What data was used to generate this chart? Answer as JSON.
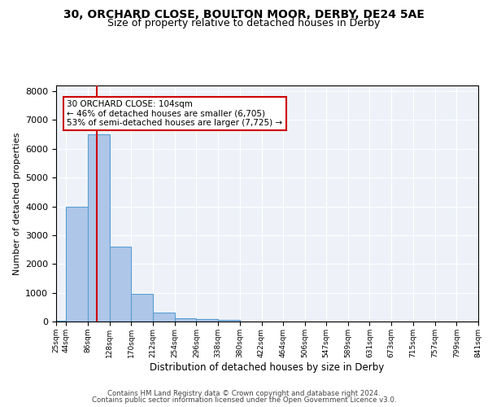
{
  "title1": "30, ORCHARD CLOSE, BOULTON MOOR, DERBY, DE24 5AE",
  "title2": "Size of property relative to detached houses in Derby",
  "xlabel": "Distribution of detached houses by size in Derby",
  "ylabel": "Number of detached properties",
  "bin_edges": [
    25,
    44,
    86,
    128,
    170,
    212,
    254,
    296,
    338,
    380,
    422,
    464,
    506,
    547,
    589,
    631,
    673,
    715,
    757,
    799,
    841
  ],
  "bin_heights": [
    25,
    4000,
    6500,
    2600,
    950,
    300,
    105,
    90,
    50,
    0,
    0,
    0,
    0,
    0,
    0,
    0,
    0,
    0,
    0,
    0
  ],
  "bar_color": "#aec6e8",
  "bar_edge_color": "#5a9fd4",
  "property_size": 104,
  "vline_color": "#cc0000",
  "annotation_text": "30 ORCHARD CLOSE: 104sqm\n← 46% of detached houses are smaller (6,705)\n53% of semi-detached houses are larger (7,725) →",
  "annotation_box_color": "#ffffff",
  "annotation_box_edge_color": "#cc0000",
  "ylim": [
    0,
    8200
  ],
  "background_color": "#eef2f8",
  "footer1": "Contains HM Land Registry data © Crown copyright and database right 2024.",
  "footer2": "Contains public sector information licensed under the Open Government Licence v3.0.",
  "title1_fontsize": 10,
  "title2_fontsize": 9,
  "tick_labels": [
    "25sqm",
    "44sqm",
    "86sqm",
    "128sqm",
    "170sqm",
    "212sqm",
    "254sqm",
    "296sqm",
    "338sqm",
    "380sqm",
    "422sqm",
    "464sqm",
    "506sqm",
    "547sqm",
    "589sqm",
    "631sqm",
    "673sqm",
    "715sqm",
    "757sqm",
    "799sqm",
    "841sqm"
  ]
}
